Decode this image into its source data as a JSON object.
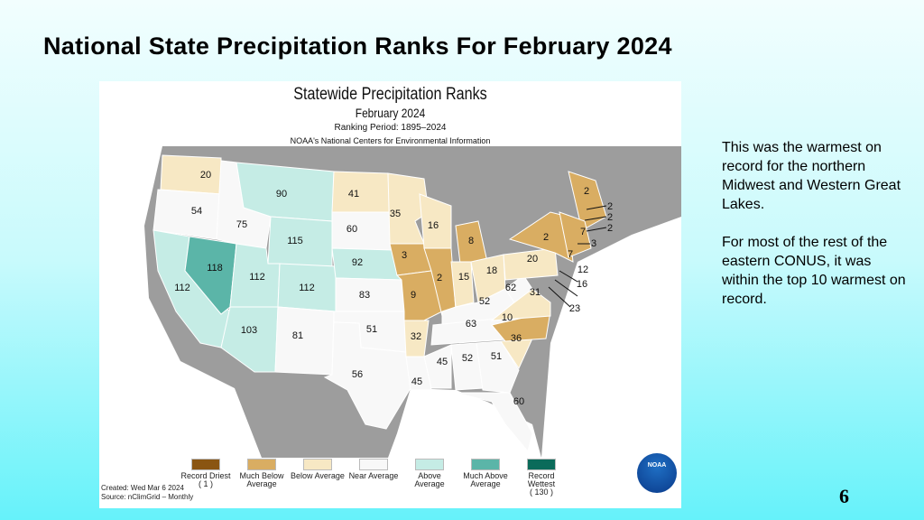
{
  "slide": {
    "title": "National State Precipitation Ranks For February 2024",
    "page_number": "6",
    "notes": [
      "This was the warmest on record for the northern Midwest and Western Great Lakes.",
      "For most of the rest of the eastern CONUS, it was within the top 10 warmest on record."
    ]
  },
  "map": {
    "title": "Statewide Precipitation Ranks",
    "subtitle": "February 2024",
    "period": "Ranking Period: 1895–2024",
    "org": "NOAA's National Centers for Environmental Information",
    "created": "Created: Wed Mar  6 2024",
    "source": "Source: nClimGrid – Monthly",
    "logo_text": "NOAA",
    "colors": {
      "record_driest": "#8a5512",
      "much_below": "#d9ad62",
      "below": "#f7e8c4",
      "near": "#f8f8f8",
      "above": "#c5ece5",
      "much_above": "#5bb5a8",
      "record_wettest": "#0b6b5a"
    },
    "legend": [
      {
        "key": "record_driest",
        "label": "Record Driest",
        "extra": "( 1 )"
      },
      {
        "key": "much_below",
        "label": "Much Below Average",
        "extra": ""
      },
      {
        "key": "below",
        "label": "Below Average",
        "extra": ""
      },
      {
        "key": "near",
        "label": "Near Average",
        "extra": ""
      },
      {
        "key": "above",
        "label": "Above Average",
        "extra": ""
      },
      {
        "key": "much_above",
        "label": "Much Above Average",
        "extra": ""
      },
      {
        "key": "record_wettest",
        "label": "Record Wettest",
        "extra": "( 130 )"
      }
    ],
    "states": [
      {
        "id": "WA",
        "rank": "20",
        "cat": "below"
      },
      {
        "id": "OR",
        "rank": "54",
        "cat": "near"
      },
      {
        "id": "CA",
        "rank": "112",
        "cat": "above"
      },
      {
        "id": "NV",
        "rank": "118",
        "cat": "much_above"
      },
      {
        "id": "ID",
        "rank": "75",
        "cat": "near"
      },
      {
        "id": "MT",
        "rank": "90",
        "cat": "above"
      },
      {
        "id": "WY",
        "rank": "115",
        "cat": "above"
      },
      {
        "id": "UT",
        "rank": "112",
        "cat": "above"
      },
      {
        "id": "CO",
        "rank": "112",
        "cat": "above"
      },
      {
        "id": "AZ",
        "rank": "103",
        "cat": "above"
      },
      {
        "id": "NM",
        "rank": "81",
        "cat": "near"
      },
      {
        "id": "ND",
        "rank": "41",
        "cat": "below"
      },
      {
        "id": "SD",
        "rank": "60",
        "cat": "near"
      },
      {
        "id": "NE",
        "rank": "92",
        "cat": "above"
      },
      {
        "id": "KS",
        "rank": "83",
        "cat": "near"
      },
      {
        "id": "OK",
        "rank": "51",
        "cat": "near"
      },
      {
        "id": "TX",
        "rank": "56",
        "cat": "near"
      },
      {
        "id": "MN",
        "rank": "35",
        "cat": "below"
      },
      {
        "id": "IA",
        "rank": "3",
        "cat": "much_below"
      },
      {
        "id": "MO",
        "rank": "9",
        "cat": "much_below"
      },
      {
        "id": "AR",
        "rank": "32",
        "cat": "below"
      },
      {
        "id": "LA",
        "rank": "45",
        "cat": "near"
      },
      {
        "id": "WI",
        "rank": "16",
        "cat": "below"
      },
      {
        "id": "IL",
        "rank": "2",
        "cat": "much_below"
      },
      {
        "id": "MI",
        "rank": "8",
        "cat": "much_below"
      },
      {
        "id": "IN",
        "rank": "15",
        "cat": "below"
      },
      {
        "id": "OH",
        "rank": "18",
        "cat": "below"
      },
      {
        "id": "KY",
        "rank": "52",
        "cat": "near"
      },
      {
        "id": "TN",
        "rank": "63",
        "cat": "near"
      },
      {
        "id": "MS",
        "rank": "45",
        "cat": "near"
      },
      {
        "id": "AL",
        "rank": "52",
        "cat": "near"
      },
      {
        "id": "GA",
        "rank": "51",
        "cat": "near"
      },
      {
        "id": "FL",
        "rank": "60",
        "cat": "near"
      },
      {
        "id": "SC",
        "rank": "36",
        "cat": "below"
      },
      {
        "id": "NC",
        "rank": "10",
        "cat": "much_below"
      },
      {
        "id": "VA",
        "rank": "31",
        "cat": "below"
      },
      {
        "id": "WV",
        "rank": "62",
        "cat": "near"
      },
      {
        "id": "PA",
        "rank": "20",
        "cat": "below"
      },
      {
        "id": "NY",
        "rank": "2",
        "cat": "much_below"
      },
      {
        "id": "ME",
        "rank": "2",
        "cat": "much_below"
      },
      {
        "id": "NE_states",
        "rank": "2",
        "cat": "much_below"
      },
      {
        "id": "NH",
        "rank": "2",
        "cat": "much_below"
      },
      {
        "id": "VT",
        "rank": "2",
        "cat": "much_below"
      },
      {
        "id": "MA",
        "rank": "2",
        "cat": "much_below"
      },
      {
        "id": "RI",
        "rank": "3",
        "cat": "much_below"
      },
      {
        "id": "CT",
        "rank": "7",
        "cat": "much_below"
      },
      {
        "id": "NJ",
        "rank": "7",
        "cat": "much_below"
      },
      {
        "id": "DE",
        "rank": "12",
        "cat": "below"
      },
      {
        "id": "MD",
        "rank": "16",
        "cat": "below"
      },
      {
        "id": "DC",
        "rank": "23",
        "cat": "below"
      }
    ]
  }
}
